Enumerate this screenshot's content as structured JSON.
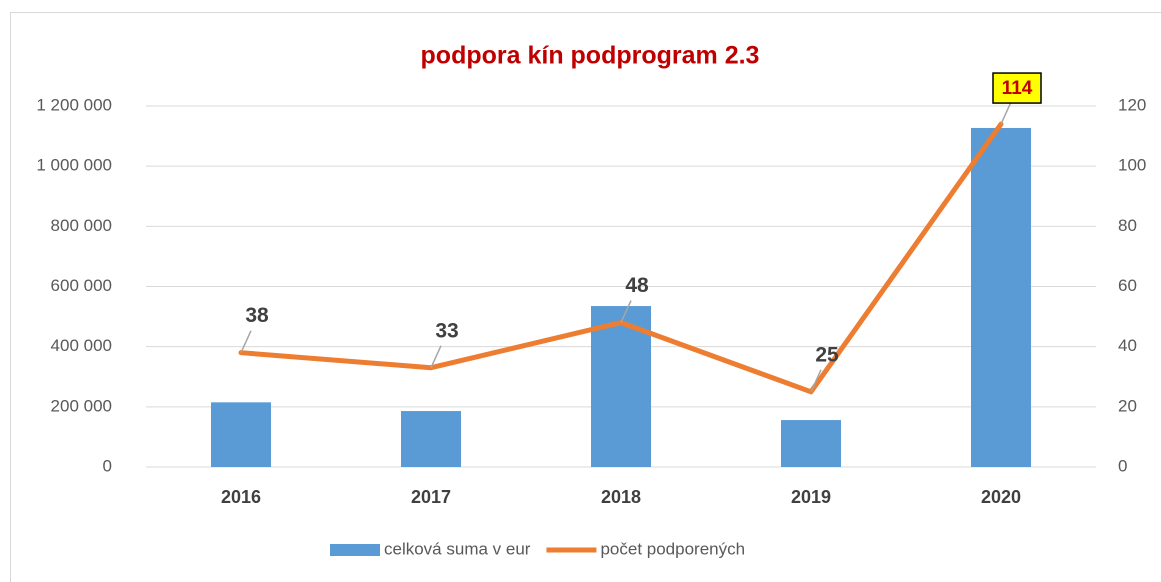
{
  "chart_data": {
    "type": "bar_line",
    "title": "podpora kín podprogram 2.3",
    "categories": [
      "2016",
      "2017",
      "2018",
      "2019",
      "2020"
    ],
    "series": [
      {
        "name": "celková suma v eur",
        "type": "bar",
        "axis": "y",
        "color": "#5b9bd5",
        "values": [
          215000,
          186000,
          535000,
          156000,
          1127000
        ]
      },
      {
        "name": "počet podporených",
        "type": "line",
        "axis": "y2",
        "color": "#ed7d31",
        "values": [
          38,
          33,
          48,
          25,
          114
        ]
      }
    ],
    "ylim": [
      0,
      1200000
    ],
    "yticks": [
      0,
      {
        "value": 200000,
        "label": "200 000"
      },
      {
        "value": 400000,
        "label": "400 000"
      },
      {
        "value": 600000,
        "label": "600 000"
      },
      {
        "value": 800000,
        "label": "800 000"
      },
      {
        "value": 1000000,
        "label": "1 000 000"
      },
      {
        "value": 1200000,
        "label": "1 200 000"
      }
    ],
    "y2lim": [
      0,
      120
    ],
    "y2ticks": [
      0,
      20,
      40,
      60,
      80,
      100,
      120
    ],
    "grid": true,
    "legend": "bottom"
  }
}
